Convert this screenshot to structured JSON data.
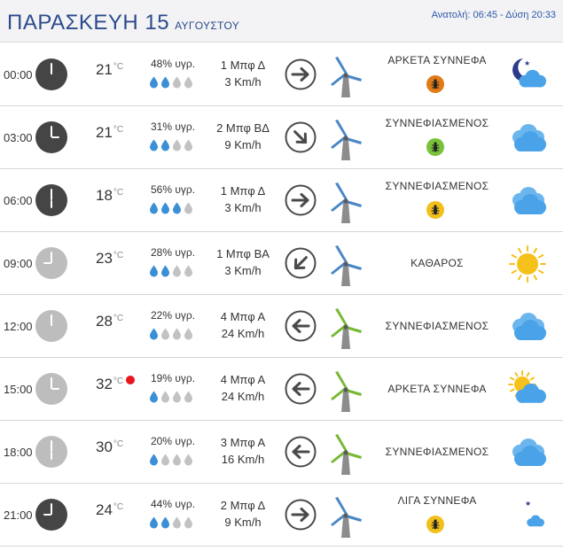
{
  "header": {
    "day": "ΠΑΡΑΣΚΕΥΗ 15",
    "month": "ΑΥΓΟΥΣΤΟΥ",
    "sun": "Ανατολή: 06:45 - Δύση 20:33"
  },
  "colors": {
    "clock_dark": "#454545",
    "clock_light": "#bdbdbd",
    "drop_full": "#3a8fd6",
    "drop_empty": "#c2c2c2",
    "mill_blue": "#4a86c7",
    "mill_green": "#78b833",
    "hot_dot": "#e8141e",
    "cloud": "#4aa3e8",
    "sun": "#f6c11b",
    "moon": "#2c3a8c"
  },
  "rows": [
    {
      "time": "00:00",
      "clock": "dark",
      "hour_hand": 0,
      "temp": "21",
      "unit": "°C",
      "hot": false,
      "humidity": "48% υγρ.",
      "drops_filled": 2,
      "wind_force": "1 Μπφ Δ",
      "wind_speed": "3 Km/h",
      "wind_dir_icon": "arrow-right-icon",
      "windmill_color": "blue",
      "condition": "ΑΡΚΕΤΑ ΣΥΝΝΕΦΑ",
      "bug_color": "#e07b17",
      "weather_icon": "moon-cloud-icon"
    },
    {
      "time": "03:00",
      "clock": "dark",
      "hour_hand": 90,
      "temp": "21",
      "unit": "°C",
      "hot": false,
      "humidity": "31% υγρ.",
      "drops_filled": 2,
      "wind_force": "2 Μπφ ΒΔ",
      "wind_speed": "9 Km/h",
      "wind_dir_icon": "arrow-down-right-icon",
      "windmill_color": "blue",
      "condition": "ΣΥΝΝΕΦΙΑΣΜΕΝΟΣ",
      "bug_color": "#78c23a",
      "weather_icon": "cloudy-icon"
    },
    {
      "time": "06:00",
      "clock": "dark",
      "hour_hand": 180,
      "temp": "18",
      "unit": "°C",
      "hot": false,
      "humidity": "56% υγρ.",
      "drops_filled": 3,
      "wind_force": "1 Μπφ Δ",
      "wind_speed": "3 Km/h",
      "wind_dir_icon": "arrow-right-icon",
      "windmill_color": "blue",
      "condition": "ΣΥΝΝΕΦΙΑΣΜΕΝΟΣ",
      "bug_color": "#f2c01d",
      "weather_icon": "cloudy-icon"
    },
    {
      "time": "09:00",
      "clock": "light",
      "hour_hand": 270,
      "temp": "23",
      "unit": "°C",
      "hot": false,
      "humidity": "28% υγρ.",
      "drops_filled": 2,
      "wind_force": "1 Μπφ ΒΑ",
      "wind_speed": "3 Km/h",
      "wind_dir_icon": "arrow-down-left-icon",
      "windmill_color": "blue",
      "condition": "ΚΑΘΑΡΟΣ",
      "bug_color": null,
      "weather_icon": "sun-icon"
    },
    {
      "time": "12:00",
      "clock": "light",
      "hour_hand": 0,
      "temp": "28",
      "unit": "°C",
      "hot": false,
      "humidity": "22% υγρ.",
      "drops_filled": 1,
      "wind_force": "4 Μπφ Α",
      "wind_speed": "24 Km/h",
      "wind_dir_icon": "arrow-left-icon",
      "windmill_color": "green",
      "condition": "ΣΥΝΝΕΦΙΑΣΜΕΝΟΣ",
      "bug_color": null,
      "weather_icon": "cloudy-icon"
    },
    {
      "time": "15:00",
      "clock": "light",
      "hour_hand": 90,
      "temp": "32",
      "unit": "°C",
      "hot": true,
      "humidity": "19% υγρ.",
      "drops_filled": 1,
      "wind_force": "4 Μπφ Α",
      "wind_speed": "24 Km/h",
      "wind_dir_icon": "arrow-left-icon",
      "windmill_color": "green",
      "condition": "ΑΡΚΕΤΑ ΣΥΝΝΕΦΑ",
      "bug_color": null,
      "weather_icon": "sun-cloud-icon"
    },
    {
      "time": "18:00",
      "clock": "light",
      "hour_hand": 180,
      "temp": "30",
      "unit": "°C",
      "hot": false,
      "humidity": "20% υγρ.",
      "drops_filled": 1,
      "wind_force": "3 Μπφ Α",
      "wind_speed": "16 Km/h",
      "wind_dir_icon": "arrow-left-icon",
      "windmill_color": "green",
      "condition": "ΣΥΝΝΕΦΙΑΣΜΕΝΟΣ",
      "bug_color": null,
      "weather_icon": "cloudy-icon"
    },
    {
      "time": "21:00",
      "clock": "dark",
      "hour_hand": 270,
      "temp": "24",
      "unit": "°C",
      "hot": false,
      "humidity": "44% υγρ.",
      "drops_filled": 2,
      "wind_force": "2 Μπφ Δ",
      "wind_speed": "9 Km/h",
      "wind_dir_icon": "arrow-right-icon",
      "windmill_color": "blue",
      "condition": "ΛΙΓΑ ΣΥΝΝΕΦΑ",
      "bug_color": "#f2c01d",
      "weather_icon": "moon-small-cloud-icon"
    }
  ]
}
